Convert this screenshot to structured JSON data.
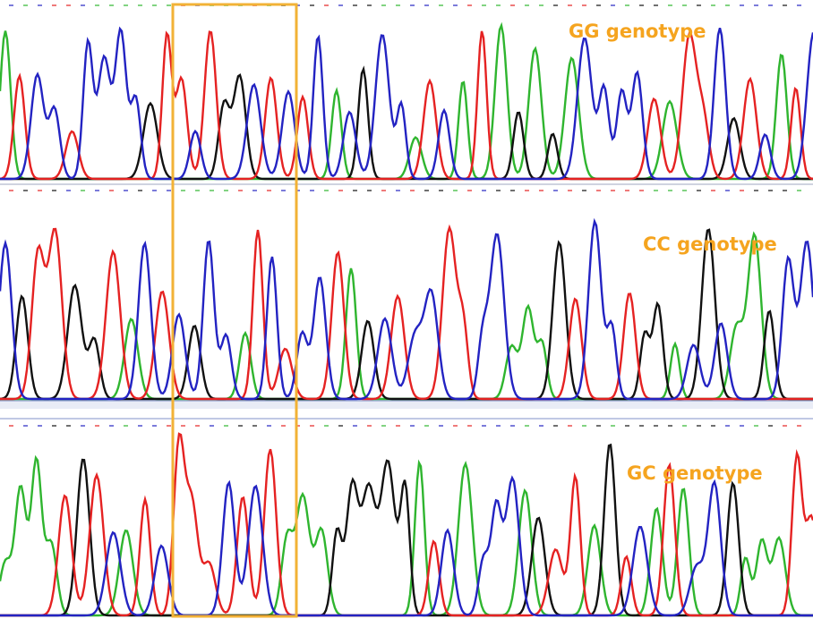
{
  "panels": [
    {
      "label": "GG genotype"
    },
    {
      "label": "CC genotype"
    },
    {
      "label": "GC genotype"
    }
  ]
}
